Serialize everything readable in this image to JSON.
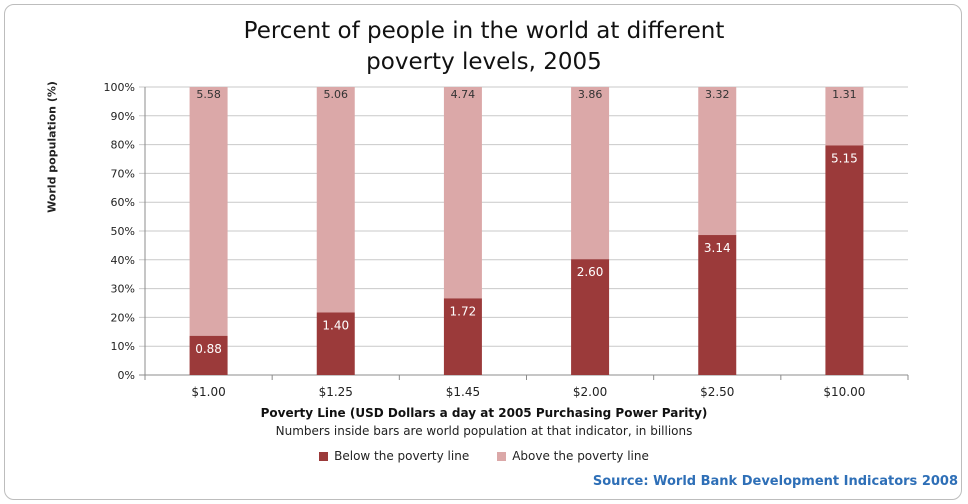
{
  "chart_data": {
    "type": "bar",
    "stacked": true,
    "title_lines": [
      "Percent of people in the world at different",
      "poverty levels, 2005"
    ],
    "xlabel": "Poverty Line (USD Dollars a day at 2005 Purchasing Power Parity)",
    "ylabel": "World population (%)",
    "note": "Numbers inside bars are world population at that indicator, in billions",
    "categories": [
      "$1.00",
      "$1.25",
      "$1.45",
      "$2.00",
      "$2.50",
      "$10.00"
    ],
    "ylim": [
      0,
      100
    ],
    "yticks": [
      0,
      10,
      20,
      30,
      40,
      50,
      60,
      70,
      80,
      90,
      100
    ],
    "ytick_labels": [
      "0%",
      "10%",
      "20%",
      "30%",
      "40%",
      "50%",
      "60%",
      "70%",
      "80%",
      "90%",
      "100%"
    ],
    "grid": true,
    "legend_position": "bottom",
    "series": [
      {
        "name": "Below the poverty line",
        "color": "#9b3a3a",
        "percent": [
          13.6,
          21.7,
          26.6,
          40.2,
          48.6,
          79.7
        ],
        "labels": [
          "0.88",
          "1.40",
          "1.72",
          "2.60",
          "3.14",
          "5.15"
        ]
      },
      {
        "name": "Above the poverty line",
        "color": "#dba8a8",
        "percent": [
          86.4,
          78.3,
          73.4,
          59.8,
          51.4,
          20.3
        ],
        "labels": [
          "5.58",
          "5.06",
          "4.74",
          "3.86",
          "3.32",
          "1.31"
        ]
      }
    ]
  },
  "source": "Source: World Bank Development Indicators 2008"
}
